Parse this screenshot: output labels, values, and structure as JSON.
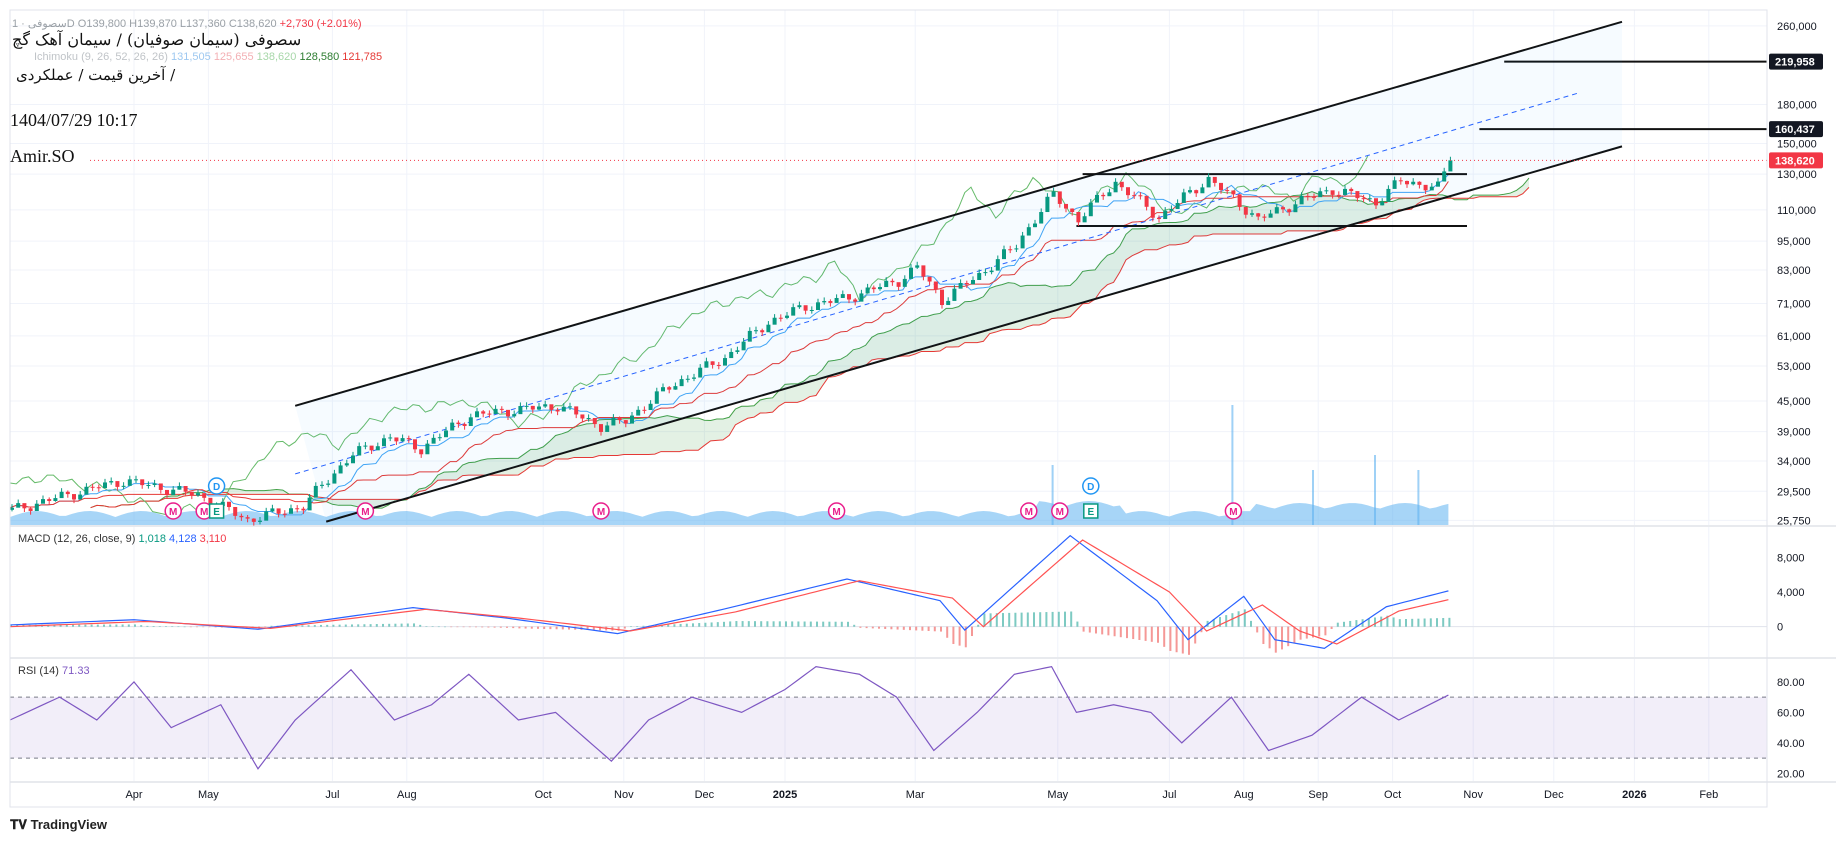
{
  "header": {
    "ohlc_prefix": "سصوفی · 1D",
    "ohlc_values": "O139,800 H139,870 L137,360 C138,620",
    "change": "+2,730 (+2.01%)",
    "title": "سصوفی (سیمان صوفیان) / سیمان آهک گچ",
    "subtitle": "آخرین قیمت / عملکردی /",
    "date": "1404/07/29 10:17",
    "author": "Amir.SO",
    "ichimoku_label": "Ichimoku (9, 26, 52, 26, 26)",
    "ichimoku_v1": "131,505",
    "ichimoku_v2": "125,655",
    "ichimoku_v3": "138,620",
    "ichimoku_v4": "128,580",
    "ichimoku_v5": "121,785"
  },
  "macd_legend": {
    "label": "MACD (12, 26, close, 9)",
    "v1": "1,018",
    "v2": "4,128",
    "v3": "3,110"
  },
  "rsi_legend": {
    "label": "RSI (14)",
    "value": "71.33"
  },
  "logo": "TradingView",
  "colors": {
    "up": "#089981",
    "down": "#f23645",
    "macd": "#2962ff",
    "signal": "#ff5252",
    "rsi": "#7e57c2",
    "cloud_up": "#43a047",
    "cloud_down": "#e53935",
    "volume": "#5fb3f0"
  },
  "chart_data": {
    "type": "candlestick",
    "x_ticks": [
      "Apr",
      "May",
      "Jul",
      "Aug",
      "Oct",
      "Nov",
      "Dec",
      "2025",
      "Mar",
      "May",
      "Jul",
      "Aug",
      "Sep",
      "Oct",
      "Nov",
      "Dec",
      "2026",
      "Feb"
    ],
    "x_tick_index": [
      20,
      32,
      52,
      64,
      86,
      99,
      112,
      125,
      146,
      169,
      187,
      199,
      211,
      223,
      236,
      249,
      262,
      274
    ],
    "price_ticks": [
      260000,
      180000,
      150000,
      130000,
      110000,
      95000,
      83000,
      71000,
      61000,
      53000,
      45000,
      39000,
      34000,
      29500,
      25750
    ],
    "price_tick_labels": [
      "260,000",
      "180,000",
      "150,000",
      "130,000",
      "110,000",
      "95,000",
      "83,000",
      "71,000",
      "61,000",
      "53,000",
      "45,000",
      "39,000",
      "34,000",
      "29,500",
      "25,750"
    ],
    "price_markers": [
      {
        "value": 219958,
        "label": "219,958",
        "style": "dark"
      },
      {
        "value": 160437,
        "label": "160,437",
        "style": "dark"
      },
      {
        "value": 138620,
        "label": "138,620",
        "style": "red"
      }
    ],
    "price_scale": "log",
    "price_anchors": [
      [
        0,
        27000
      ],
      [
        18,
        31000
      ],
      [
        30,
        29000
      ],
      [
        38,
        25800
      ],
      [
        47,
        27500
      ],
      [
        55,
        35000
      ],
      [
        61,
        38000
      ],
      [
        66,
        36000
      ],
      [
        74,
        42000
      ],
      [
        80,
        43000
      ],
      [
        88,
        44000
      ],
      [
        95,
        40000
      ],
      [
        99,
        41000
      ],
      [
        106,
        48000
      ],
      [
        115,
        55000
      ],
      [
        122,
        65000
      ],
      [
        128,
        70000
      ],
      [
        135,
        73000
      ],
      [
        143,
        79000
      ],
      [
        146,
        84000
      ],
      [
        150,
        72000
      ],
      [
        156,
        81000
      ],
      [
        162,
        93000
      ],
      [
        168,
        118000
      ],
      [
        172,
        105000
      ],
      [
        178,
        125000
      ],
      [
        185,
        106000
      ],
      [
        193,
        127000
      ],
      [
        201,
        105000
      ],
      [
        208,
        115000
      ],
      [
        213,
        121000
      ],
      [
        220,
        114000
      ],
      [
        224,
        126000
      ],
      [
        230,
        122000
      ],
      [
        232,
        138620
      ]
    ],
    "macd_ticks": [
      8000,
      4000,
      0
    ],
    "macd_tick_labels": [
      "8,000",
      "4,000",
      "0"
    ],
    "macd_anchors": [
      [
        0,
        200
      ],
      [
        20,
        800
      ],
      [
        40,
        -300
      ],
      [
        65,
        2200
      ],
      [
        80,
        1000
      ],
      [
        98,
        -800
      ],
      [
        115,
        2000
      ],
      [
        135,
        5500
      ],
      [
        150,
        3000
      ],
      [
        154,
        -400
      ],
      [
        171,
        10500
      ],
      [
        185,
        3000
      ],
      [
        190,
        -1500
      ],
      [
        199,
        3500
      ],
      [
        204,
        -1500
      ],
      [
        212,
        -2500
      ],
      [
        222,
        2300
      ],
      [
        232,
        4128
      ]
    ],
    "signal_anchors": [
      [
        0,
        0
      ],
      [
        22,
        600
      ],
      [
        42,
        -200
      ],
      [
        67,
        2000
      ],
      [
        82,
        1000
      ],
      [
        100,
        -500
      ],
      [
        117,
        1700
      ],
      [
        137,
        5300
      ],
      [
        152,
        3300
      ],
      [
        157,
        0
      ],
      [
        173,
        10000
      ],
      [
        187,
        4000
      ],
      [
        193,
        -500
      ],
      [
        202,
        2500
      ],
      [
        208,
        -500
      ],
      [
        214,
        -2000
      ],
      [
        224,
        1800
      ],
      [
        232,
        3110
      ]
    ],
    "rsi_ticks": [
      80,
      60,
      40,
      20
    ],
    "rsi_tick_labels": [
      "80.00",
      "60.00",
      "40.00",
      "20.00"
    ],
    "rsi_bands": [
      70,
      30
    ],
    "rsi_anchors": [
      [
        0,
        55
      ],
      [
        8,
        70
      ],
      [
        14,
        55
      ],
      [
        20,
        80
      ],
      [
        26,
        50
      ],
      [
        34,
        65
      ],
      [
        40,
        23
      ],
      [
        46,
        55
      ],
      [
        55,
        88
      ],
      [
        62,
        55
      ],
      [
        68,
        65
      ],
      [
        74,
        85
      ],
      [
        82,
        55
      ],
      [
        88,
        60
      ],
      [
        97,
        28
      ],
      [
        103,
        55
      ],
      [
        110,
        70
      ],
      [
        118,
        60
      ],
      [
        125,
        75
      ],
      [
        130,
        90
      ],
      [
        137,
        85
      ],
      [
        143,
        70
      ],
      [
        149,
        35
      ],
      [
        156,
        60
      ],
      [
        162,
        85
      ],
      [
        168,
        90
      ],
      [
        172,
        60
      ],
      [
        178,
        65
      ],
      [
        184,
        60
      ],
      [
        189,
        40
      ],
      [
        197,
        70
      ],
      [
        203,
        35
      ],
      [
        210,
        45
      ],
      [
        218,
        70
      ],
      [
        224,
        55
      ],
      [
        232,
        71.33
      ]
    ],
    "event_markers": [
      {
        "i": 26,
        "type": "M"
      },
      {
        "i": 31,
        "type": "M"
      },
      {
        "i": 33,
        "type": "E"
      },
      {
        "i": 33,
        "type": "D"
      },
      {
        "i": 57,
        "type": "M"
      },
      {
        "i": 95,
        "type": "M"
      },
      {
        "i": 133,
        "type": "M"
      },
      {
        "i": 164,
        "type": "M"
      },
      {
        "i": 169,
        "type": "M"
      },
      {
        "i": 174,
        "type": "E"
      },
      {
        "i": 174,
        "type": "D"
      },
      {
        "i": 197,
        "type": "M"
      }
    ],
    "trendlines": [
      {
        "from": [
          46,
          44000
        ],
        "to": [
          260,
          265000
        ],
        "style": "solid"
      },
      {
        "from": [
          51,
          25600
        ],
        "to": [
          260,
          148000
        ],
        "style": "solid"
      },
      {
        "from": [
          46,
          32000
        ],
        "to": [
          253,
          190000
        ],
        "style": "dashed"
      },
      {
        "from": [
          173,
          130000
        ],
        "to": [
          235,
          130000
        ],
        "style": "solid"
      },
      {
        "from": [
          172,
          102000
        ],
        "to": [
          235,
          102000
        ],
        "style": "solid"
      }
    ]
  }
}
